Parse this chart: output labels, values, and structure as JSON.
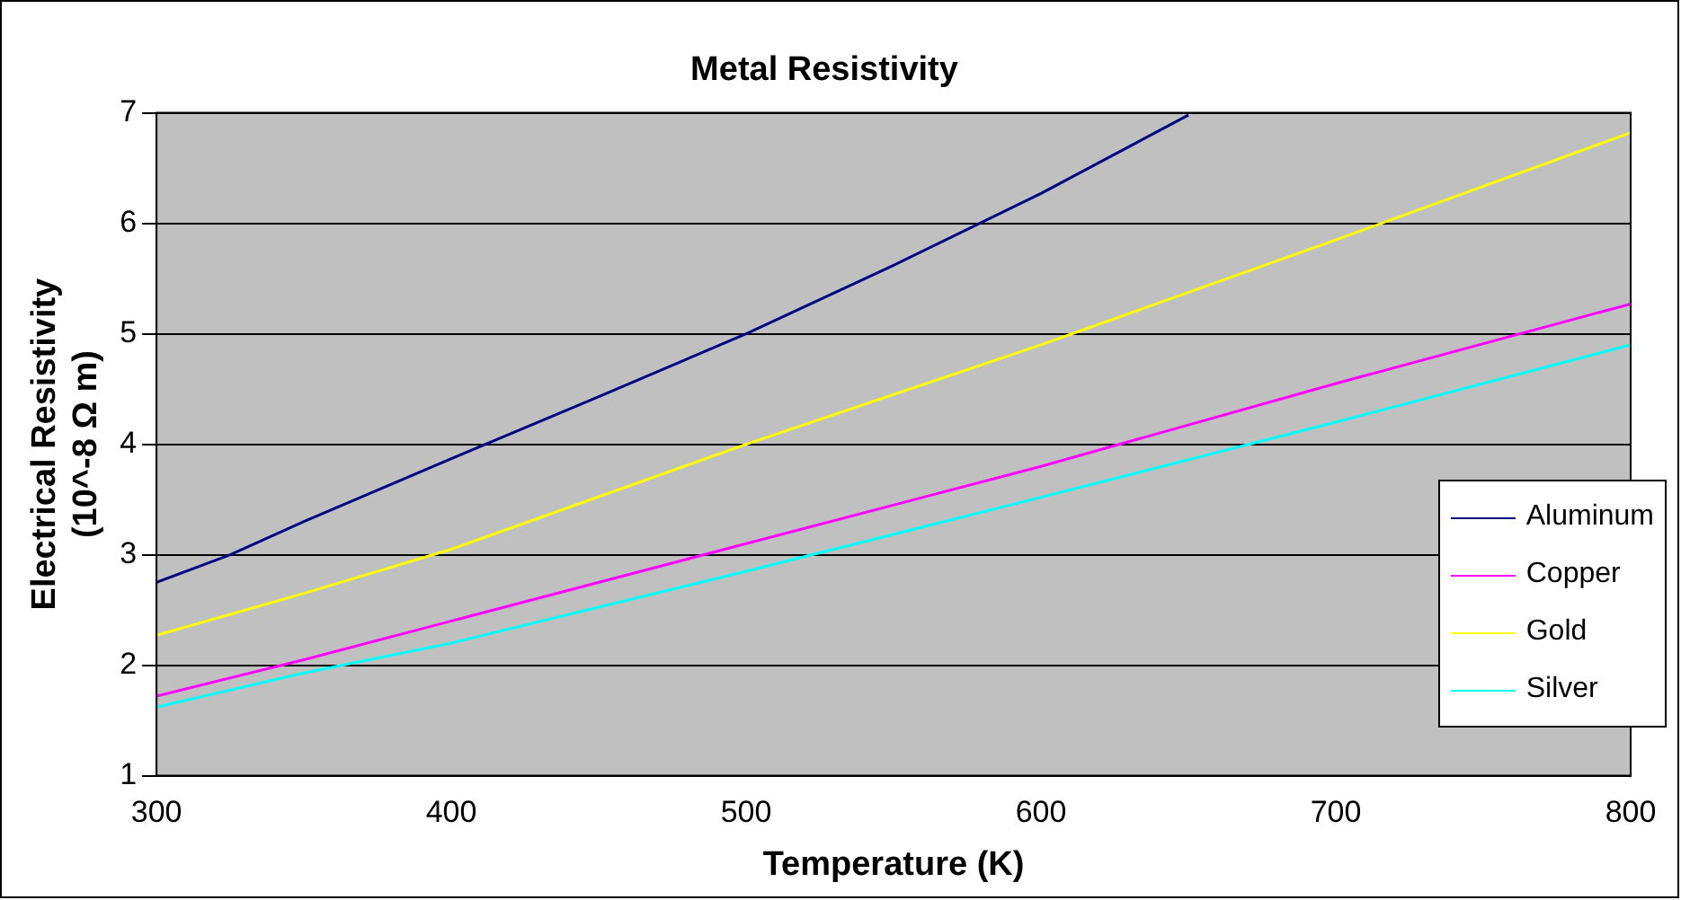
{
  "chart_data": {
    "type": "line",
    "title": "Metal Resistivity",
    "xlabel": "Temperature (K)",
    "ylabel": "Electrical Resistivity (10^-8 Ω m)",
    "series": [
      {
        "name": "Aluminum",
        "color": "#000080",
        "x": [
          300,
          325,
          350,
          400,
          450,
          500,
          550,
          600,
          650
        ],
        "values": [
          2.75,
          3.0,
          3.3,
          3.87,
          4.43,
          5.0,
          5.62,
          6.27,
          6.98
        ]
      },
      {
        "name": "Copper",
        "color": "#ff00ff",
        "x": [
          300,
          350,
          400,
          500,
          600,
          700,
          800
        ],
        "values": [
          1.72,
          2.05,
          2.4,
          3.1,
          3.8,
          4.55,
          5.27
        ]
      },
      {
        "name": "Gold",
        "color": "#ffff00",
        "x": [
          300,
          350,
          400,
          500,
          600,
          700,
          800
        ],
        "values": [
          2.27,
          2.65,
          3.05,
          4.0,
          4.9,
          5.85,
          6.82
        ]
      },
      {
        "name": "Silver",
        "color": "#00ffff",
        "x": [
          300,
          350,
          400,
          500,
          600,
          700,
          800
        ],
        "values": [
          1.62,
          1.93,
          2.2,
          2.85,
          3.52,
          4.2,
          4.9
        ]
      }
    ],
    "xlim": [
      300,
      800
    ],
    "xticks": [
      300,
      400,
      500,
      600,
      700,
      800
    ],
    "ylim": [
      1,
      7
    ],
    "yticks": [
      1,
      2,
      3,
      4,
      5,
      6,
      7
    ],
    "grid": "y",
    "legend": "right",
    "marker": "none",
    "line_style": "solid"
  }
}
